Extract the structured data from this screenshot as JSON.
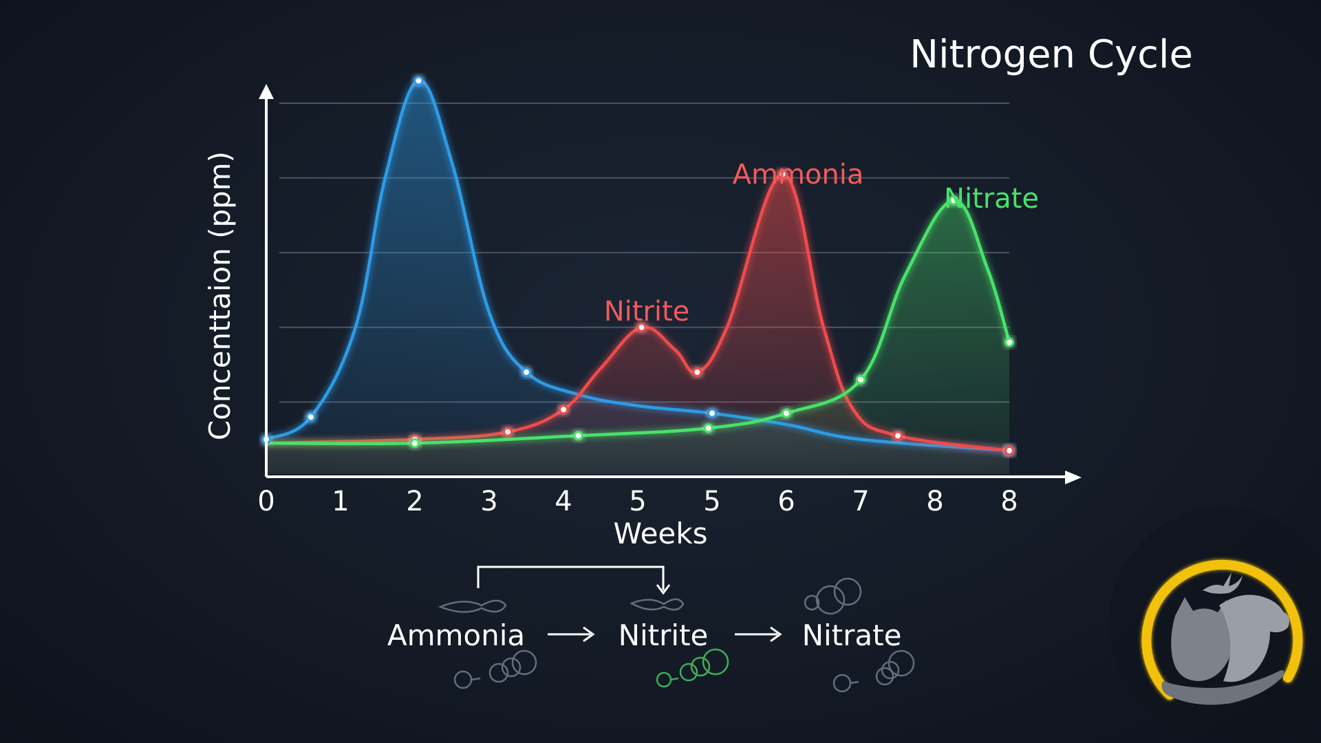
{
  "chart_data": {
    "type": "area",
    "title": "Nitrogen Cycle",
    "xlabel": "Weeks",
    "ylabel": "Concenttaion (ppm)",
    "x_tick_labels": [
      "0",
      "1",
      "2",
      "3",
      "4",
      "5",
      "5",
      "6",
      "7",
      "8",
      "8"
    ],
    "xlim": [
      0,
      10
    ],
    "ylim": [
      0,
      5
    ],
    "grid": true,
    "colors": {
      "blue": "#2e9be6",
      "red": "#ef4c4c",
      "green": "#49e26b"
    },
    "series": [
      {
        "name": "",
        "color_key": "blue",
        "points": [
          [
            0,
            0.5
          ],
          [
            0.6,
            0.8
          ],
          [
            2.05,
            5.3
          ],
          [
            3.5,
            1.4
          ],
          [
            6.0,
            0.85
          ],
          [
            10.0,
            0.35
          ]
        ],
        "curve": [
          [
            0,
            0.5
          ],
          [
            0.6,
            0.8
          ],
          [
            1.2,
            2.0
          ],
          [
            1.6,
            4.0
          ],
          [
            2.05,
            5.3
          ],
          [
            2.5,
            4.2
          ],
          [
            3.0,
            2.2
          ],
          [
            3.5,
            1.4
          ],
          [
            4.2,
            1.1
          ],
          [
            5.0,
            0.95
          ],
          [
            6.0,
            0.85
          ],
          [
            7.0,
            0.7
          ],
          [
            8.0,
            0.5
          ],
          [
            10.0,
            0.35
          ]
        ]
      },
      {
        "name": "Nitrite",
        "color_key": "red",
        "points": [
          [
            2.0,
            0.5
          ],
          [
            3.25,
            0.6
          ],
          [
            4.0,
            0.9
          ],
          [
            5.05,
            2.0
          ],
          [
            5.8,
            1.4
          ],
          [
            6.95,
            4.05
          ],
          [
            8.5,
            0.55
          ],
          [
            10.0,
            0.35
          ]
        ],
        "curve": [
          [
            0,
            0.45
          ],
          [
            2.0,
            0.5
          ],
          [
            3.25,
            0.6
          ],
          [
            4.0,
            0.9
          ],
          [
            4.5,
            1.45
          ],
          [
            5.05,
            2.0
          ],
          [
            5.5,
            1.7
          ],
          [
            5.8,
            1.4
          ],
          [
            6.2,
            2.0
          ],
          [
            6.95,
            4.05
          ],
          [
            7.5,
            2.0
          ],
          [
            7.9,
            0.9
          ],
          [
            8.5,
            0.55
          ],
          [
            10.0,
            0.35
          ]
        ]
      },
      {
        "name": "Ammonia",
        "color_key": "red",
        "label_only": true
      },
      {
        "name": "Nitrate",
        "color_key": "green",
        "points": [
          [
            2.0,
            0.45
          ],
          [
            4.2,
            0.55
          ],
          [
            5.95,
            0.65
          ],
          [
            7.0,
            0.85
          ],
          [
            8.0,
            1.3
          ],
          [
            9.25,
            3.7
          ],
          [
            10.0,
            1.8
          ]
        ],
        "curve": [
          [
            0,
            0.45
          ],
          [
            2.0,
            0.45
          ],
          [
            4.2,
            0.55
          ],
          [
            5.95,
            0.65
          ],
          [
            7.0,
            0.85
          ],
          [
            8.0,
            1.3
          ],
          [
            8.6,
            2.7
          ],
          [
            9.25,
            3.7
          ],
          [
            9.7,
            2.8
          ],
          [
            10.0,
            1.8
          ]
        ]
      }
    ]
  },
  "flow": {
    "steps": [
      "Ammonia",
      "Nitrite",
      "Nitrate"
    ],
    "arrow_icon": "long-right-arrow-icon",
    "loop_icon": "bracket-arrow-icon"
  },
  "logo": {
    "icon": "pet-care-logo-icon",
    "ring_color": "#f2c10f"
  }
}
